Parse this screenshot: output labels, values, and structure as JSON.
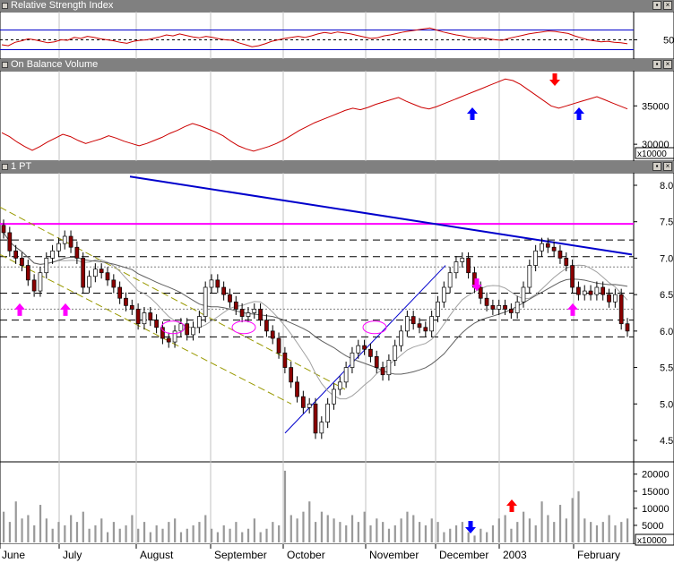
{
  "panels": {
    "rsi": {
      "title": "Relative Strength Index",
      "ticks": [
        {
          "v": 50,
          "label": "50"
        }
      ]
    },
    "obv": {
      "title": "On Balance Volume",
      "ticks": [
        {
          "v": 35000,
          "label": "35000"
        },
        {
          "v": 30000,
          "label": "30000"
        }
      ],
      "multiplier": "x10000"
    },
    "price": {
      "title": "1 PT",
      "ticks": [
        "8.0",
        "7.5",
        "7.0",
        "6.5",
        "6.0",
        "5.5",
        "5.0",
        "4.5"
      ]
    },
    "volume": {
      "ticks": [
        {
          "v": 20000,
          "label": "20000"
        },
        {
          "v": 15000,
          "label": "15000"
        },
        {
          "v": 10000,
          "label": "10000"
        },
        {
          "v": 5000,
          "label": "5000"
        }
      ],
      "multiplier": "x10000"
    }
  },
  "x_axis": {
    "labels": [
      "June",
      "July",
      "August",
      "September",
      "October",
      "November",
      "December",
      "2003",
      "February"
    ]
  },
  "colors": {
    "candle_up": "#ffffff",
    "candle_down": "#8b0000",
    "rsi_line": "#cc0000",
    "obv_line": "#cc0000",
    "trend_blue": "#0000cc",
    "resistance": "#ff00ff",
    "channel": "#999900",
    "arrow_magenta": "#ff00ff",
    "arrow_blue": "#0000ff",
    "arrow_red": "#ff0000",
    "volume_bar": "#999999"
  },
  "chart_data": [
    {
      "type": "line",
      "title": "Relative Strength Index",
      "y_ticks": [
        50
      ],
      "series": [
        {
          "values": [
            40,
            38,
            45,
            48,
            52,
            50,
            47,
            44,
            46,
            50,
            49,
            55,
            53,
            57,
            55,
            52,
            50,
            48,
            45,
            43,
            47,
            49,
            50,
            53,
            56,
            60,
            58,
            62,
            59,
            56,
            54,
            57,
            55,
            52,
            50,
            49,
            44,
            40,
            36,
            38,
            42,
            47,
            50,
            53,
            55,
            57,
            55,
            58,
            62,
            65,
            63,
            66,
            64,
            62,
            59,
            56,
            53,
            54,
            58,
            60,
            63,
            66,
            68,
            70,
            72,
            74,
            70,
            66,
            63,
            60,
            58,
            55,
            53,
            54,
            52,
            50,
            49,
            53,
            56,
            59,
            62,
            64,
            66,
            68,
            67,
            65,
            63,
            58,
            54,
            50,
            48,
            46,
            47,
            45,
            44,
            42
          ]
        }
      ]
    },
    {
      "type": "line",
      "title": "On Balance Volume",
      "y_ticks": [
        30000,
        35000
      ],
      "multiplier": "x10000",
      "series": [
        {
          "values": [
            31500,
            31000,
            30300,
            29700,
            29200,
            29700,
            30300,
            30800,
            31300,
            31000,
            30500,
            30100,
            30400,
            30700,
            31100,
            30800,
            30400,
            30100,
            29800,
            30100,
            30500,
            30900,
            31400,
            31800,
            32300,
            32700,
            32400,
            32000,
            31600,
            31100,
            30400,
            29800,
            29400,
            29100,
            29400,
            29700,
            30100,
            30600,
            31200,
            31800,
            32300,
            32800,
            33200,
            33600,
            34000,
            34400,
            34700,
            34500,
            34800,
            35200,
            35500,
            35800,
            36100,
            35600,
            35200,
            34800,
            34600,
            34900,
            35300,
            35700,
            36100,
            36500,
            36900,
            37300,
            37700,
            38100,
            38500,
            38300,
            37800,
            37100,
            36400,
            35700,
            35000,
            34700,
            35000,
            35300,
            35600,
            35900,
            36200,
            35800,
            35400,
            35000,
            34600
          ]
        }
      ]
    },
    {
      "type": "candlestick",
      "title": "1 PT",
      "y_ticks": [
        4.5,
        5.0,
        5.5,
        6.0,
        6.5,
        7.0,
        7.5,
        8.0
      ],
      "ylim": [
        4.3,
        8.15
      ],
      "series": [
        {
          "close": [
            7.35,
            7.1,
            7.0,
            6.9,
            6.7,
            6.55,
            6.8,
            7.0,
            7.1,
            7.2,
            7.3,
            7.15,
            7.0,
            6.6,
            6.75,
            6.85,
            6.8,
            6.7,
            6.6,
            6.45,
            6.35,
            6.3,
            6.1,
            6.25,
            6.15,
            6.05,
            5.9,
            5.85,
            6.0,
            6.1,
            5.95,
            6.05,
            6.2,
            6.6,
            6.7,
            6.6,
            6.5,
            6.4,
            6.3,
            6.2,
            6.25,
            6.3,
            6.15,
            6.0,
            5.9,
            5.7,
            5.5,
            5.3,
            5.1,
            4.95,
            5.0,
            4.6,
            4.75,
            5.0,
            5.2,
            5.3,
            5.5,
            5.7,
            5.8,
            5.75,
            5.65,
            5.5,
            5.4,
            5.6,
            5.8,
            6.0,
            6.2,
            6.1,
            6.05,
            6.0,
            6.2,
            6.4,
            6.6,
            6.8,
            6.95,
            7.0,
            6.8,
            6.6,
            6.45,
            6.35,
            6.3,
            6.35,
            6.3,
            6.25,
            6.4,
            6.6,
            6.9,
            7.1,
            7.2,
            7.15,
            7.1,
            7.0,
            6.9,
            6.6,
            6.5,
            6.55,
            6.5,
            6.6,
            6.5,
            6.4,
            6.5,
            6.1,
            6.0
          ]
        }
      ]
    },
    {
      "type": "bar",
      "title": "Volume",
      "y_ticks": [
        5000,
        10000,
        15000,
        20000
      ],
      "multiplier": "x10000",
      "series": [
        {
          "values": [
            9000,
            6000,
            12000,
            7000,
            8000,
            5000,
            11000,
            7000,
            4000,
            6000,
            5000,
            8000,
            6000,
            9000,
            4000,
            5000,
            7000,
            3000,
            6000,
            4000,
            5000,
            8000,
            4000,
            6000,
            3000,
            5000,
            4000,
            6000,
            7000,
            3000,
            4000,
            5000,
            6000,
            8000,
            4000,
            3000,
            5000,
            4000,
            6000,
            3000,
            4000,
            7000,
            3000,
            4000,
            6000,
            5000,
            21000,
            8000,
            7000,
            9000,
            12000,
            6000,
            9000,
            8000,
            7000,
            6000,
            5000,
            8000,
            6000,
            9000,
            5000,
            7000,
            6000,
            4000,
            5000,
            7000,
            9000,
            8000,
            6000,
            5000,
            7000,
            6000,
            3000,
            4000,
            5000,
            6000,
            3000,
            2000,
            4000,
            3000,
            5000,
            7000,
            8000,
            4000,
            6000,
            9000,
            7000,
            5000,
            12000,
            8000,
            6000,
            11000,
            7000,
            13000,
            15000,
            7000,
            6000,
            5000,
            6000,
            8000,
            5000,
            6000,
            7000
          ]
        }
      ]
    }
  ]
}
